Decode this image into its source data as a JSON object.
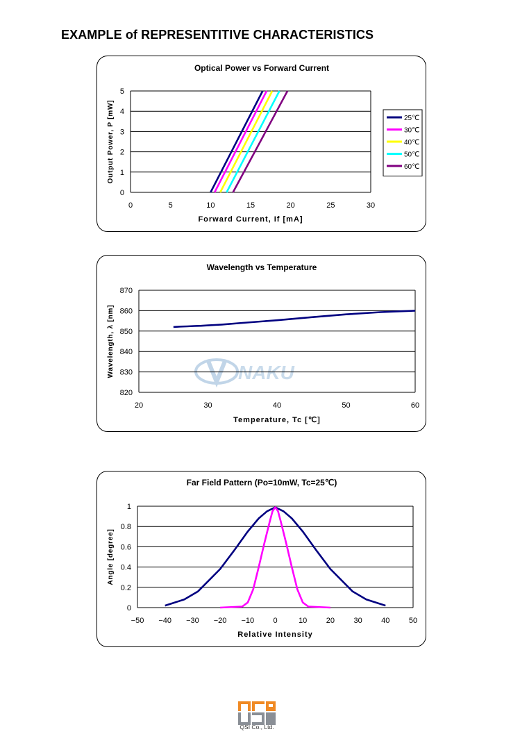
{
  "page": {
    "title": "EXAMPLE of REPRESENTITIVE CHARACTERISTICS",
    "watermark_text": "NAKU",
    "footer_logo_text": "QSI",
    "footer_company": "QSI Co., Ltd."
  },
  "chart_data": [
    {
      "type": "line",
      "title": "Optical Power vs Forward Current",
      "xlabel": "Forward Current, If [mA]",
      "ylabel": "Output Power, P [mW]",
      "xlim": [
        0,
        30
      ],
      "ylim": [
        0,
        5
      ],
      "xticks": [
        0,
        5,
        10,
        15,
        20,
        25,
        30
      ],
      "yticks": [
        0,
        1,
        2,
        3,
        4,
        5
      ],
      "grid": "horizontal",
      "legend_position": "right",
      "series": [
        {
          "name": "25℃",
          "color": "#000080",
          "x": [
            10.0,
            16.5
          ],
          "y": [
            0,
            5
          ]
        },
        {
          "name": "30℃",
          "color": "#ff00ff",
          "x": [
            10.5,
            17.0
          ],
          "y": [
            0,
            5
          ]
        },
        {
          "name": "40℃",
          "color": "#ffff00",
          "x": [
            11.2,
            17.7
          ],
          "y": [
            0,
            5
          ]
        },
        {
          "name": "50℃",
          "color": "#00ffff",
          "x": [
            12.0,
            18.6
          ],
          "y": [
            0,
            5
          ]
        },
        {
          "name": "60℃",
          "color": "#800080",
          "x": [
            12.8,
            19.6
          ],
          "y": [
            0,
            5
          ]
        }
      ]
    },
    {
      "type": "line",
      "title": "Wavelength vs Temperature",
      "xlabel": "Temperature, Tc [℃]",
      "ylabel": "Wavelength, λ [nm]",
      "xlim": [
        20,
        60
      ],
      "ylim": [
        820,
        870
      ],
      "xticks": [
        20,
        30,
        40,
        50,
        60
      ],
      "yticks": [
        820,
        830,
        840,
        850,
        860,
        870
      ],
      "grid": "horizontal",
      "series": [
        {
          "name": "",
          "color": "#000080",
          "x": [
            25,
            26,
            27,
            28,
            29,
            30,
            31,
            32,
            35,
            40,
            45,
            50,
            55,
            60
          ],
          "y": [
            852,
            852.2,
            852.3,
            852.5,
            852.6,
            852.8,
            853,
            853.2,
            854,
            855.3,
            856.8,
            858.2,
            859.3,
            860
          ]
        }
      ]
    },
    {
      "type": "line",
      "title": "Far Field Pattern (Po=10mW, Tc=25℃)",
      "xlabel": "Relative Intensity",
      "ylabel": "Angle [degree]",
      "xlim": [
        -50,
        50
      ],
      "ylim": [
        0,
        1
      ],
      "xticks": [
        -50,
        -40,
        -30,
        -20,
        -10,
        0,
        10,
        20,
        30,
        40,
        50
      ],
      "yticks": [
        0,
        0.2,
        0.4,
        0.6,
        0.8,
        1
      ],
      "grid": "horizontal",
      "series": [
        {
          "name": "",
          "color": "#000080",
          "x": [
            -40,
            -33,
            -28,
            -20,
            -15,
            -10,
            -6,
            -3,
            0,
            3,
            6,
            10,
            15,
            20,
            28,
            33,
            40
          ],
          "y": [
            0.02,
            0.08,
            0.16,
            0.38,
            0.56,
            0.75,
            0.88,
            0.95,
            0.99,
            0.95,
            0.88,
            0.75,
            0.56,
            0.38,
            0.16,
            0.08,
            0.02
          ]
        },
        {
          "name": "",
          "color": "#ff00ff",
          "x": [
            -20,
            -12,
            -10,
            -8,
            -6,
            -4,
            -2,
            -1,
            0,
            1,
            2,
            4,
            6,
            8,
            10,
            12,
            20
          ],
          "y": [
            0,
            0.01,
            0.05,
            0.18,
            0.4,
            0.63,
            0.85,
            0.95,
            0.99,
            0.95,
            0.85,
            0.63,
            0.4,
            0.18,
            0.05,
            0.01,
            0
          ]
        }
      ]
    }
  ]
}
